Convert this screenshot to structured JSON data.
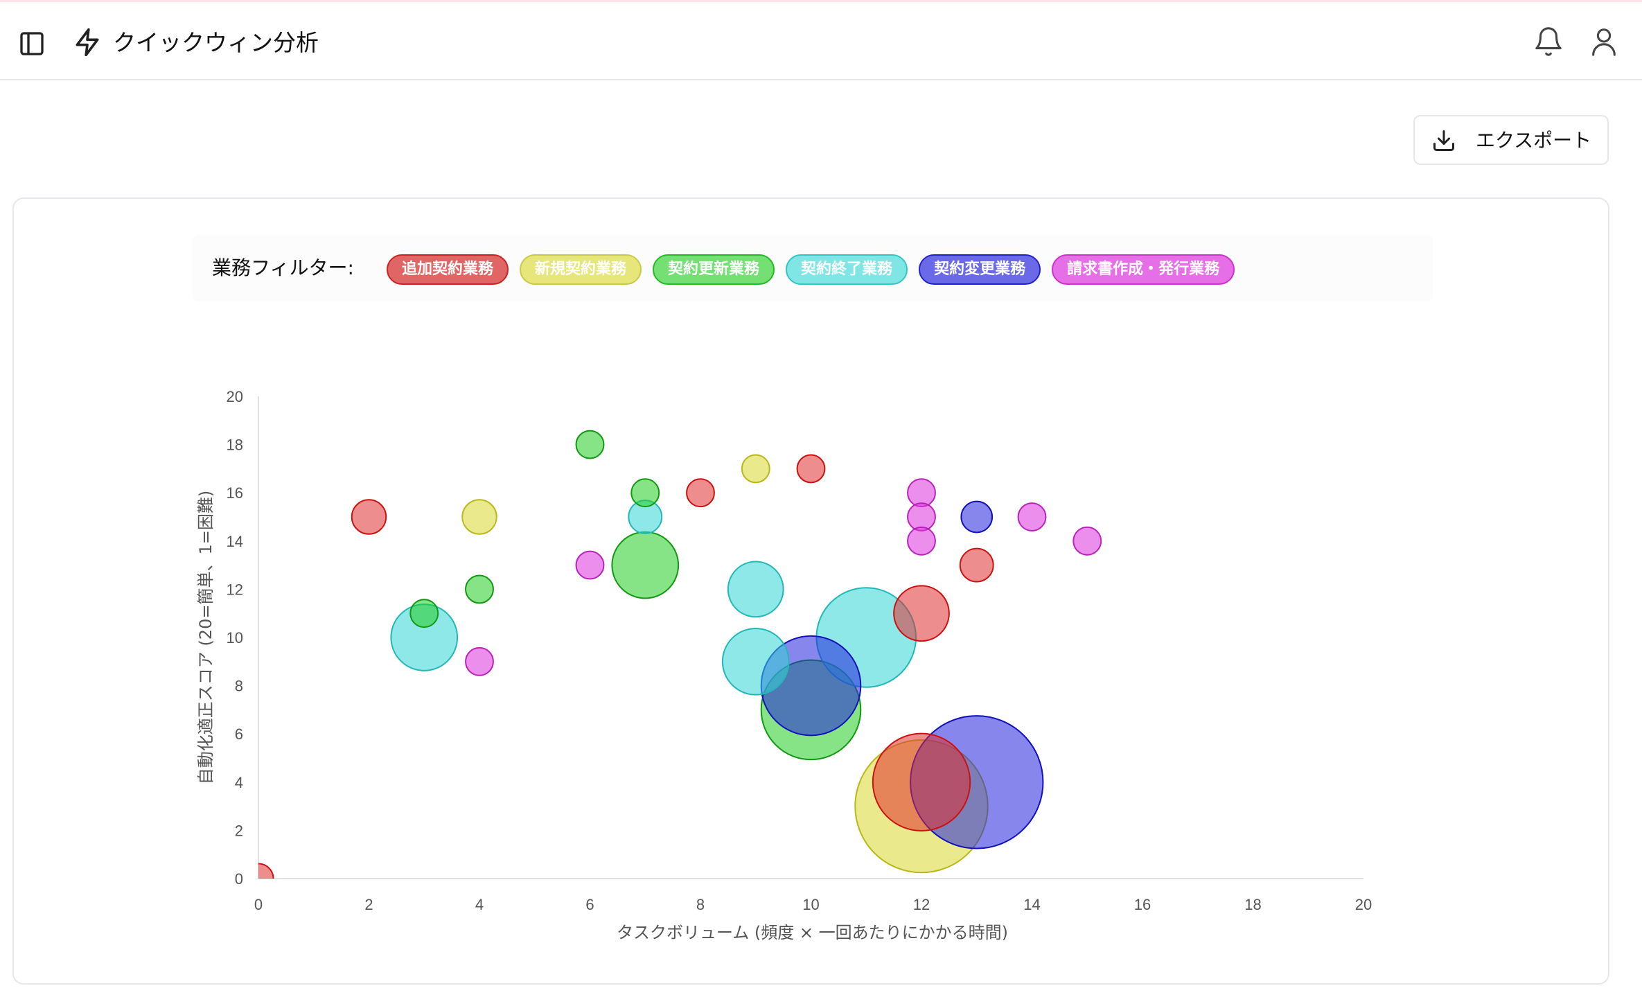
{
  "header": {
    "title": "クイックウィン分析",
    "icons": {
      "sidebar": "sidebar-toggle-icon",
      "title": "bolt-icon",
      "notifications": "bell-icon",
      "account": "user-icon"
    }
  },
  "toolbar": {
    "export_label": "エクスポート",
    "export_icon": "download-icon"
  },
  "filter": {
    "label": "業務フィルター:",
    "chips": [
      {
        "label": "追加契約業務",
        "color": "#e06666",
        "border": "#cc2222"
      },
      {
        "label": "新規契約業務",
        "color": "#e6e67a",
        "border": "#c9c94a"
      },
      {
        "label": "契約更新業務",
        "color": "#74e074",
        "border": "#22bb22"
      },
      {
        "label": "契約終了業務",
        "color": "#80e5e5",
        "border": "#33c6c6"
      },
      {
        "label": "契約変更業務",
        "color": "#6a6ae8",
        "border": "#2222cc"
      },
      {
        "label": "請求書作成・発行業務",
        "color": "#e66ee6",
        "border": "#cc33cc"
      }
    ]
  },
  "chart_data": {
    "type": "scatter",
    "title": "",
    "xlabel": "タスクボリューム (頻度 × 一回あたりにかかる時間)",
    "ylabel": "自動化適正スコア (20=簡単、1=困難)",
    "xlim": [
      0,
      20
    ],
    "ylim": [
      0,
      20
    ],
    "xticks": [
      0,
      2,
      4,
      6,
      8,
      10,
      12,
      14,
      16,
      18,
      20
    ],
    "yticks": [
      0,
      2,
      4,
      6,
      8,
      10,
      12,
      14,
      16,
      18,
      20
    ],
    "grid": false,
    "series": [
      {
        "name": "追加契約業務",
        "fill": "#e03030",
        "stroke": "#cc1111",
        "points": [
          {
            "x": 0,
            "y": 0,
            "r": 0.27
          },
          {
            "x": 2,
            "y": 15,
            "r": 0.31
          },
          {
            "x": 8,
            "y": 16,
            "r": 0.25
          },
          {
            "x": 10,
            "y": 17,
            "r": 0.25
          },
          {
            "x": 12,
            "y": 11,
            "r": 0.5
          },
          {
            "x": 13,
            "y": 13,
            "r": 0.3
          },
          {
            "x": 12,
            "y": 4,
            "r": 0.88
          }
        ]
      },
      {
        "name": "新規契約業務",
        "fill": "#d8d830",
        "stroke": "#b8b818",
        "points": [
          {
            "x": 4,
            "y": 15,
            "r": 0.31
          },
          {
            "x": 9,
            "y": 17,
            "r": 0.25
          },
          {
            "x": 12,
            "y": 3,
            "r": 1.2
          }
        ]
      },
      {
        "name": "契約更新業務",
        "fill": "#22cc22",
        "stroke": "#119911",
        "points": [
          {
            "x": 6,
            "y": 18,
            "r": 0.25
          },
          {
            "x": 7,
            "y": 16,
            "r": 0.25
          },
          {
            "x": 3,
            "y": 11,
            "r": 0.25
          },
          {
            "x": 4,
            "y": 12,
            "r": 0.25
          },
          {
            "x": 7,
            "y": 13,
            "r": 0.6
          },
          {
            "x": 10,
            "y": 7,
            "r": 0.9
          }
        ]
      },
      {
        "name": "契約終了業務",
        "fill": "#33d6d6",
        "stroke": "#22b8b8",
        "points": [
          {
            "x": 3,
            "y": 10,
            "r": 0.6
          },
          {
            "x": 7,
            "y": 15,
            "r": 0.3
          },
          {
            "x": 9,
            "y": 12,
            "r": 0.5
          },
          {
            "x": 9,
            "y": 9,
            "r": 0.6
          },
          {
            "x": 11,
            "y": 10,
            "r": 0.9
          }
        ]
      },
      {
        "name": "契約変更業務",
        "fill": "#2222dd",
        "stroke": "#1111bb",
        "points": [
          {
            "x": 13,
            "y": 15,
            "r": 0.28
          },
          {
            "x": 10,
            "y": 8,
            "r": 0.9
          },
          {
            "x": 13,
            "y": 4,
            "r": 1.2
          }
        ]
      },
      {
        "name": "請求書作成・発行業務",
        "fill": "#dd33dd",
        "stroke": "#bb22bb",
        "points": [
          {
            "x": 4,
            "y": 9,
            "r": 0.25
          },
          {
            "x": 6,
            "y": 13,
            "r": 0.25
          },
          {
            "x": 12,
            "y": 16,
            "r": 0.25
          },
          {
            "x": 12,
            "y": 15,
            "r": 0.25
          },
          {
            "x": 12,
            "y": 14,
            "r": 0.25
          },
          {
            "x": 14,
            "y": 15,
            "r": 0.25
          },
          {
            "x": 15,
            "y": 14,
            "r": 0.25
          }
        ]
      }
    ]
  }
}
